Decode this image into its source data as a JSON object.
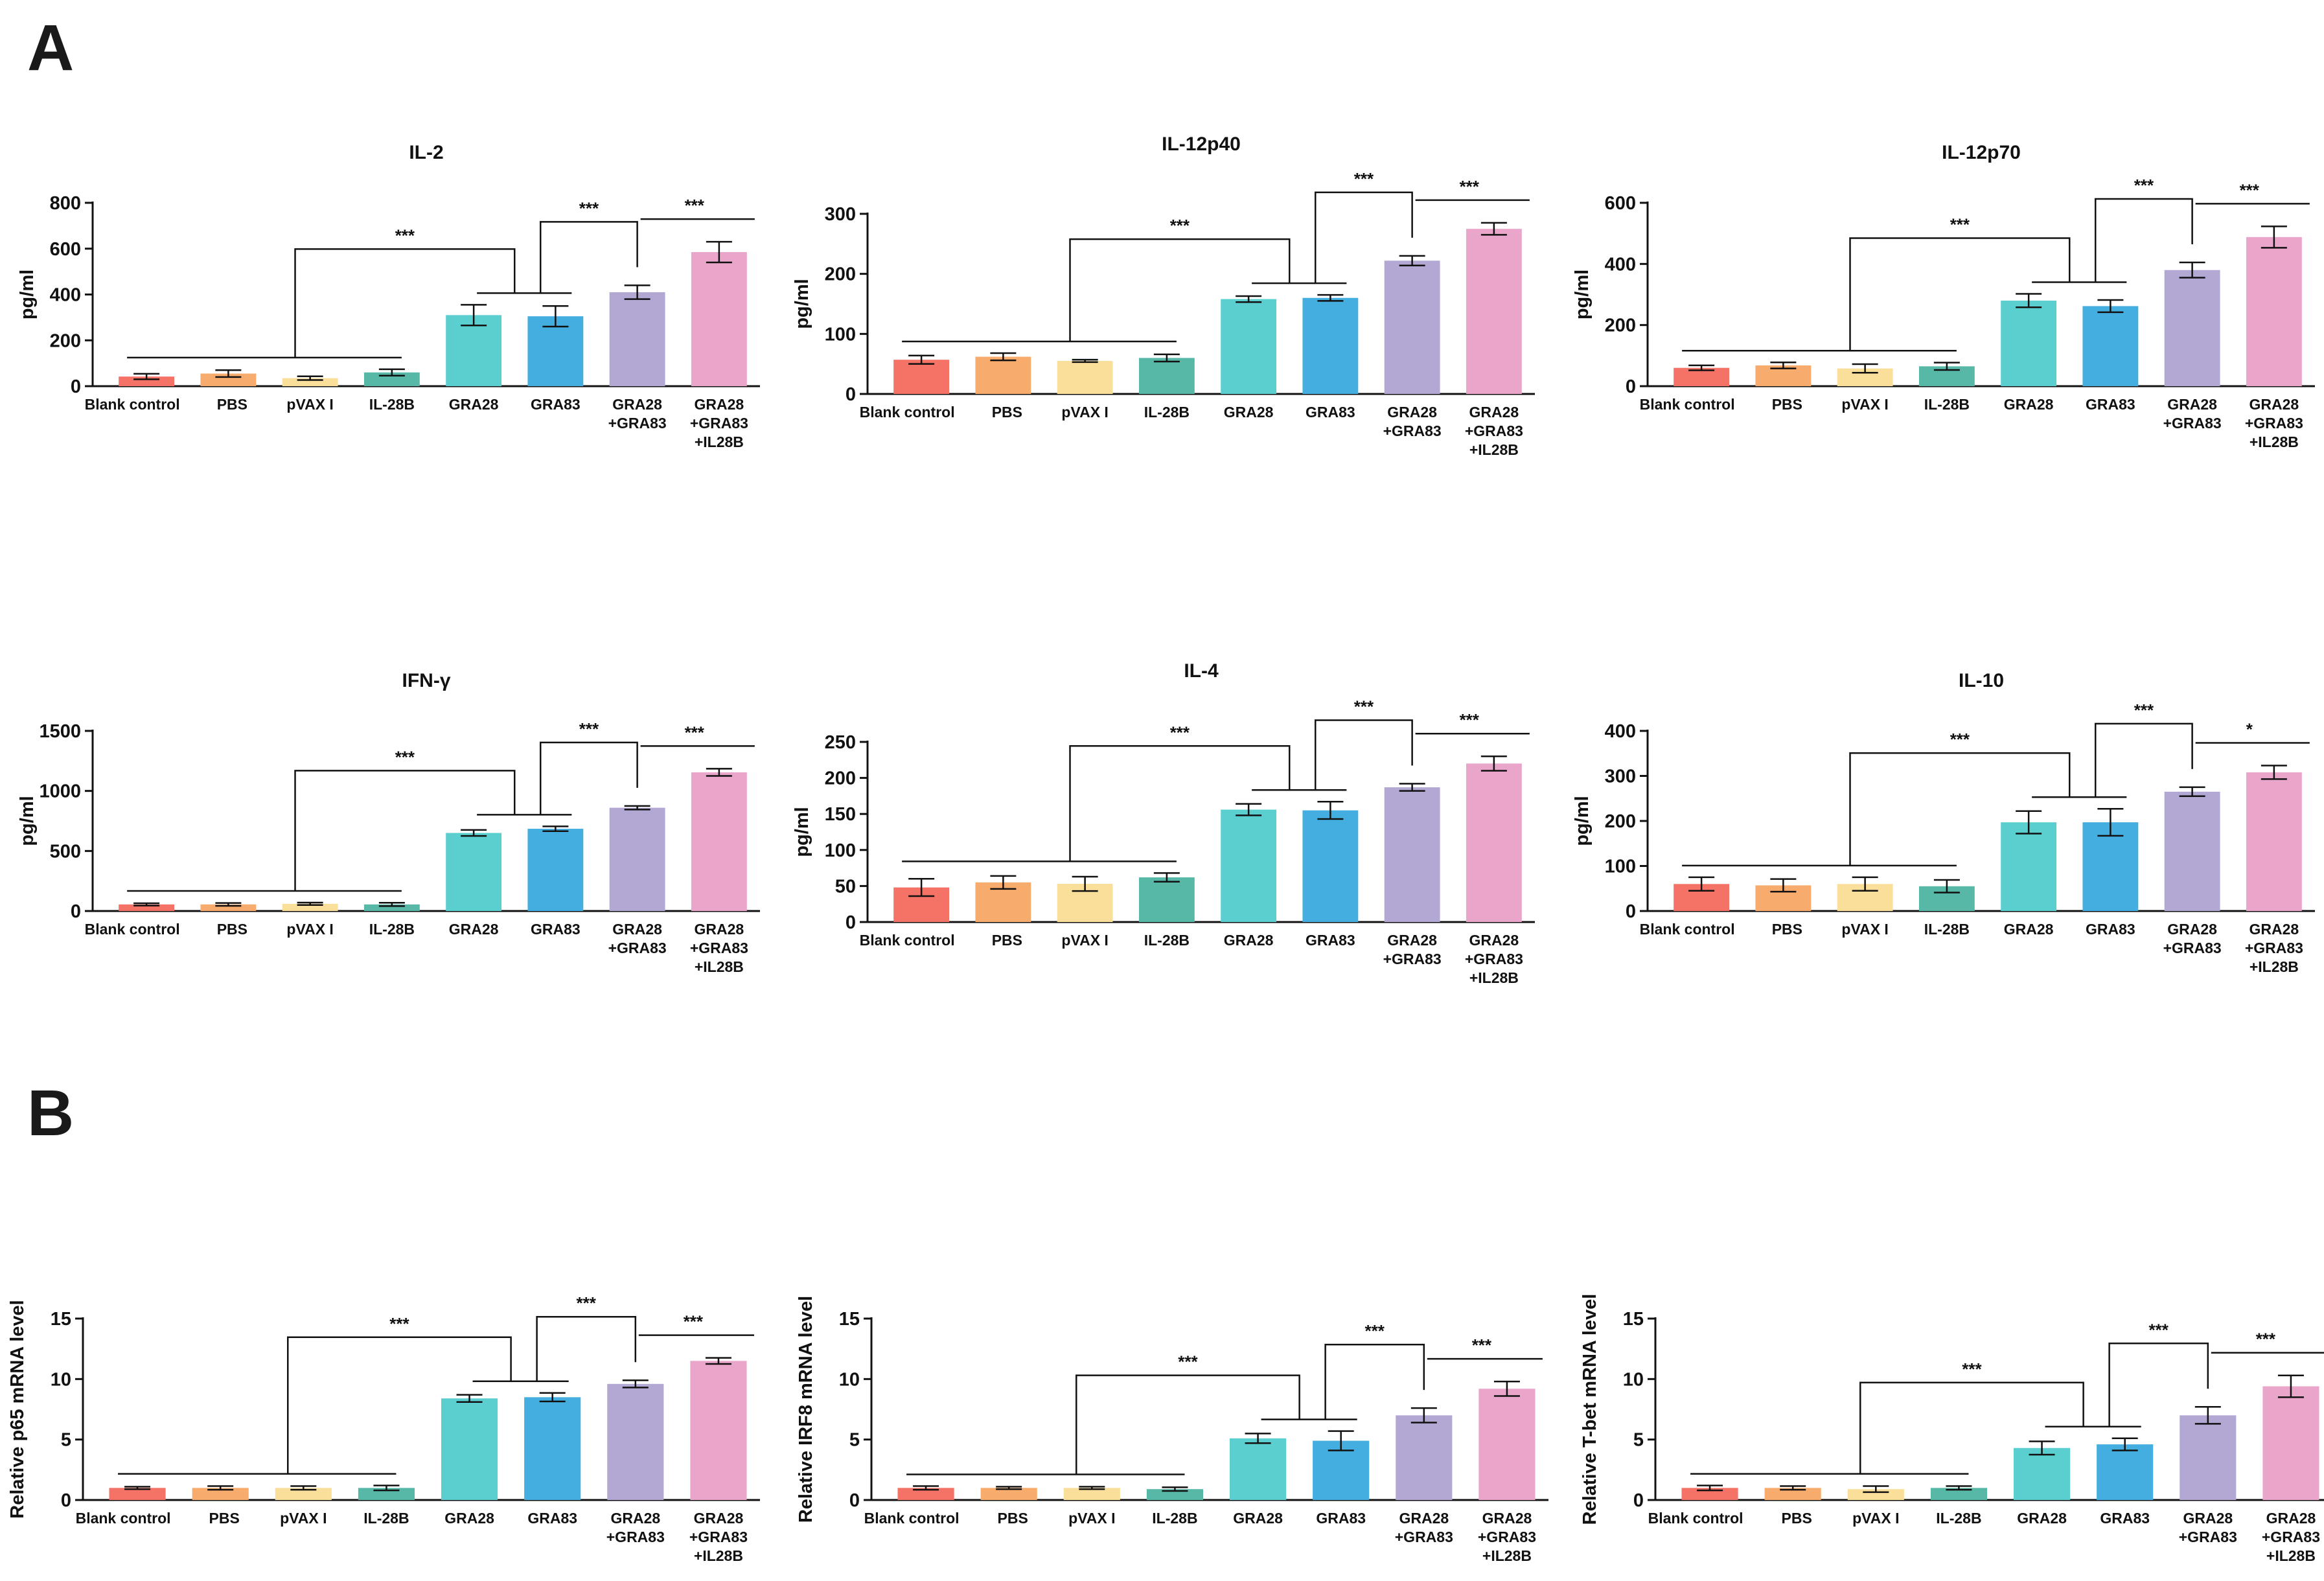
{
  "panel_labels": [
    "A",
    "B"
  ],
  "chart_data": [
    {
      "type": "bar",
      "title": "IL-2",
      "ylabel": "pg/ml",
      "ylim": [
        0,
        800
      ],
      "yticks": [
        0,
        200,
        400,
        600,
        800
      ],
      "categories": [
        "Blank control",
        "PBS",
        "pVAX I",
        "IL-28B",
        "GRA28",
        "GRA83",
        "GRA28\n+GRA83",
        "GRA28\n+GRA83\n+IL28B"
      ],
      "values": [
        42,
        55,
        35,
        60,
        310,
        305,
        410,
        585
      ],
      "errors": [
        12,
        15,
        8,
        14,
        45,
        45,
        30,
        45
      ],
      "significance": [
        "***",
        "***",
        "***"
      ]
    },
    {
      "type": "bar",
      "title": "IL-12p40",
      "ylabel": "pg/ml",
      "ylim": [
        0,
        300
      ],
      "yticks": [
        0,
        100,
        200,
        300
      ],
      "categories": [
        "Blank control",
        "PBS",
        "pVAX I",
        "IL-28B",
        "GRA28",
        "GRA83",
        "GRA28\n+GRA83",
        "GRA28\n+GRA83\n+IL28B"
      ],
      "values": [
        57,
        62,
        55,
        60,
        158,
        160,
        222,
        275
      ],
      "errors": [
        7,
        6,
        2,
        6,
        5,
        5,
        8,
        10
      ],
      "significance": [
        "***",
        "***",
        "***"
      ]
    },
    {
      "type": "bar",
      "title": "IL-12p70",
      "ylabel": "pg/ml",
      "ylim": [
        0,
        600
      ],
      "yticks": [
        0,
        200,
        400,
        600
      ],
      "categories": [
        "Blank control",
        "PBS",
        "pVAX I",
        "IL-28B",
        "GRA28",
        "GRA83",
        "GRA28\n+GRA83",
        "GRA28\n+GRA83\n+IL28B"
      ],
      "values": [
        60,
        68,
        58,
        65,
        280,
        262,
        380,
        488
      ],
      "errors": [
        8,
        10,
        14,
        12,
        22,
        20,
        25,
        35
      ],
      "significance": [
        "***",
        "***",
        "***"
      ]
    },
    {
      "type": "bar",
      "title": "IFN-γ",
      "ylabel": "pg/ml",
      "ylim": [
        0,
        1500
      ],
      "yticks": [
        0,
        500,
        1000,
        1500
      ],
      "categories": [
        "Blank control",
        "PBS",
        "pVAX I",
        "IL-28B",
        "GRA28",
        "GRA83",
        "GRA28\n+GRA83",
        "GRA28\n+GRA83\n+IL28B"
      ],
      "values": [
        55,
        55,
        60,
        55,
        650,
        685,
        860,
        1155
      ],
      "errors": [
        10,
        12,
        10,
        14,
        25,
        20,
        15,
        30
      ],
      "significance": [
        "***",
        "***",
        "***"
      ]
    },
    {
      "type": "bar",
      "title": "IL-4",
      "ylabel": "pg/ml",
      "ylim": [
        0,
        250
      ],
      "yticks": [
        0,
        50,
        100,
        150,
        200,
        250
      ],
      "categories": [
        "Blank control",
        "PBS",
        "pVAX I",
        "IL-28B",
        "GRA28",
        "GRA83",
        "GRA28\n+GRA83",
        "GRA28\n+GRA83\n+IL28B"
      ],
      "values": [
        48,
        55,
        53,
        62,
        156,
        155,
        187,
        220
      ],
      "errors": [
        12,
        9,
        10,
        6,
        8,
        12,
        5,
        10
      ],
      "significance": [
        "***",
        "***",
        "***"
      ]
    },
    {
      "type": "bar",
      "title": "IL-10",
      "ylabel": "pg/ml",
      "ylim": [
        0,
        400
      ],
      "yticks": [
        0,
        100,
        200,
        300,
        400
      ],
      "categories": [
        "Blank control",
        "PBS",
        "pVAX I",
        "IL-28B",
        "GRA28",
        "GRA83",
        "GRA28\n+GRA83",
        "GRA28\n+GRA83\n+IL28B"
      ],
      "values": [
        60,
        57,
        60,
        55,
        197,
        197,
        265,
        308
      ],
      "errors": [
        15,
        14,
        15,
        14,
        25,
        30,
        10,
        15
      ],
      "significance": [
        "***",
        "***",
        "*"
      ]
    },
    {
      "type": "bar",
      "title": "",
      "ylabel": "Relative p65 mRNA level",
      "ylim": [
        0,
        15
      ],
      "yticks": [
        0,
        5,
        10,
        15
      ],
      "categories": [
        "Blank control",
        "PBS",
        "pVAX I",
        "IL-28B",
        "GRA28",
        "GRA83",
        "GRA28\n+GRA83",
        "GRA28\n+GRA83\n+IL28B"
      ],
      "values": [
        1.0,
        1.0,
        1.0,
        1.0,
        8.4,
        8.5,
        9.6,
        11.5
      ],
      "errors": [
        0.1,
        0.15,
        0.15,
        0.2,
        0.3,
        0.35,
        0.3,
        0.25
      ],
      "significance": [
        "***",
        "***",
        "***"
      ]
    },
    {
      "type": "bar",
      "title": "",
      "ylabel": "Relative IRF8 mRNA level",
      "ylim": [
        0,
        15
      ],
      "yticks": [
        0,
        5,
        10,
        15
      ],
      "categories": [
        "Blank control",
        "PBS",
        "pVAX I",
        "IL-28B",
        "GRA28",
        "GRA83",
        "GRA28\n+GRA83",
        "GRA28\n+GRA83\n+IL28B"
      ],
      "values": [
        1.0,
        1.0,
        1.0,
        0.9,
        5.1,
        4.9,
        7.0,
        9.2
      ],
      "errors": [
        0.15,
        0.1,
        0.1,
        0.15,
        0.4,
        0.8,
        0.6,
        0.6
      ],
      "significance": [
        "***",
        "***",
        "***"
      ]
    },
    {
      "type": "bar",
      "title": "",
      "ylabel": "Relative T-bet mRNA level",
      "ylim": [
        0,
        15
      ],
      "yticks": [
        0,
        5,
        10,
        15
      ],
      "categories": [
        "Blank control",
        "PBS",
        "pVAX I",
        "IL-28B",
        "GRA28",
        "GRA83",
        "GRA28\n+GRA83",
        "GRA28\n+GRA83\n+IL28B"
      ],
      "values": [
        1.0,
        1.0,
        0.9,
        1.0,
        4.3,
        4.6,
        7.0,
        9.4
      ],
      "errors": [
        0.2,
        0.15,
        0.25,
        0.15,
        0.55,
        0.5,
        0.7,
        0.9
      ],
      "significance": [
        "***",
        "***",
        "***"
      ]
    }
  ],
  "colors": {
    "bars": [
      "#f47266",
      "#f7ab6c",
      "#fadf9b",
      "#58b8a8",
      "#5bcfcf",
      "#44aee0",
      "#b3a7d4",
      "#eaa5cb"
    ],
    "ink": "#111111"
  }
}
